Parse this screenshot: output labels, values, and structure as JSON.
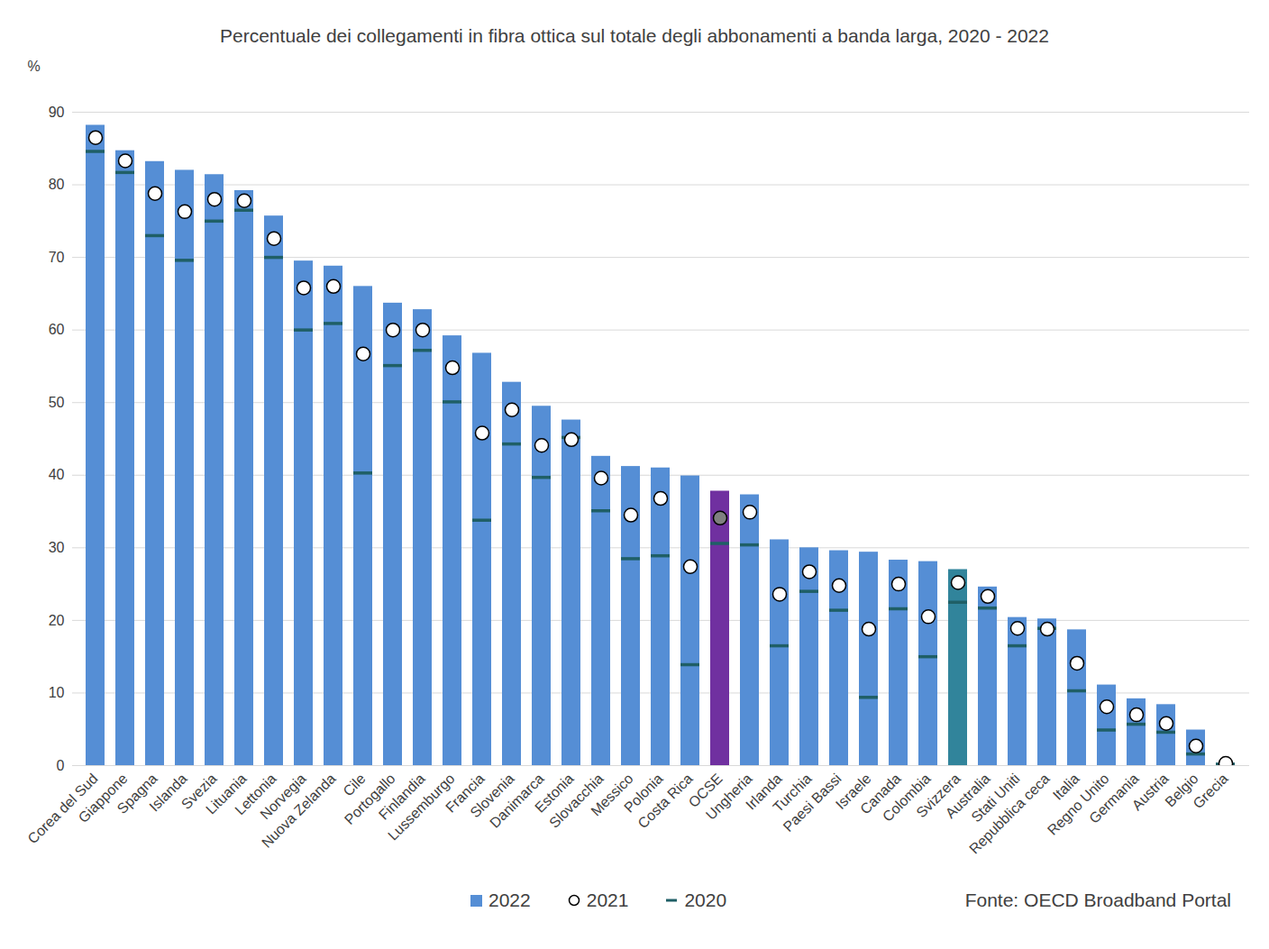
{
  "chart_data": {
    "type": "bar",
    "title": "Percentuale dei collegamenti in fibra ottica sul totale degli abbonamenti a banda larga, 2020 - 2022",
    "y_label": "%",
    "source": "Fonte: OECD Broadband Portal",
    "categories": [
      "Corea del Sud",
      "Giappone",
      "Spagna",
      "Islanda",
      "Svezia",
      "Lituania",
      "Lettonia",
      "Norvegia",
      "Nuova Zelanda",
      "Cile",
      "Portogallo",
      "Finlandia",
      "Lussemburgo",
      "Francia",
      "Slovenia",
      "Danimarca",
      "Estonia",
      "Slovacchia",
      "Messico",
      "Polonia",
      "Costa Rica",
      "OCSE",
      "Ungheria",
      "Irlanda",
      "Turchia",
      "Paesi Bassi",
      "Israele",
      "Canada",
      "Colombia",
      "Svizzera",
      "Australia",
      "Stati Uniti",
      "Repubblica ceca",
      "Italia",
      "Regno Unito",
      "Germania",
      "Austria",
      "Belgio",
      "Grecia"
    ],
    "series": [
      {
        "name": "2022",
        "type": "bar",
        "color": "#558ED5",
        "colors": [
          "#558ED5",
          "#558ED5",
          "#558ED5",
          "#558ED5",
          "#558ED5",
          "#558ED5",
          "#558ED5",
          "#558ED5",
          "#558ED5",
          "#558ED5",
          "#558ED5",
          "#558ED5",
          "#558ED5",
          "#558ED5",
          "#558ED5",
          "#558ED5",
          "#558ED5",
          "#558ED5",
          "#558ED5",
          "#558ED5",
          "#558ED5",
          "#7030A0",
          "#558ED5",
          "#558ED5",
          "#558ED5",
          "#558ED5",
          "#558ED5",
          "#558ED5",
          "#558ED5",
          "#31849B",
          "#558ED5",
          "#558ED5",
          "#558ED5",
          "#558ED5",
          "#558ED5",
          "#558ED5",
          "#558ED5",
          "#558ED5",
          "#558ED5"
        ],
        "values": [
          88.2,
          84.7,
          83.2,
          82,
          81.4,
          79.2,
          75.7,
          69.5,
          68.8,
          66,
          63.7,
          62.8,
          59.2,
          56.8,
          52.8,
          49.5,
          47.6,
          42.6,
          41.2,
          41,
          39.9,
          37.8,
          37.3,
          31.1,
          30,
          29.6,
          29.4,
          28.3,
          28.1,
          27,
          24.6,
          20.4,
          20.2,
          18.7,
          11.1,
          9.2,
          8.4,
          4.9,
          0.3
        ]
      },
      {
        "name": "2021",
        "type": "scatter",
        "marker": "circle",
        "color": "#ffffff",
        "colors": [
          "#ffffff",
          "#ffffff",
          "#ffffff",
          "#ffffff",
          "#ffffff",
          "#ffffff",
          "#ffffff",
          "#ffffff",
          "#ffffff",
          "#ffffff",
          "#ffffff",
          "#ffffff",
          "#ffffff",
          "#ffffff",
          "#ffffff",
          "#ffffff",
          "#ffffff",
          "#ffffff",
          "#ffffff",
          "#ffffff",
          "#ffffff",
          "#808080",
          "#ffffff",
          "#ffffff",
          "#ffffff",
          "#ffffff",
          "#ffffff",
          "#ffffff",
          "#ffffff",
          "#ffffff",
          "#ffffff",
          "#ffffff",
          "#ffffff",
          "#ffffff",
          "#ffffff",
          "#ffffff",
          "#ffffff",
          "#ffffff",
          "#ffffff"
        ],
        "values": [
          86.5,
          83.3,
          78.8,
          76.3,
          78,
          77.8,
          72.6,
          65.8,
          66,
          56.7,
          60,
          60,
          54.8,
          45.8,
          49,
          44.1,
          44.9,
          39.6,
          34.5,
          36.8,
          27.4,
          34.1,
          34.9,
          23.6,
          26.7,
          24.8,
          18.8,
          25,
          20.5,
          25.2,
          23.3,
          18.9,
          18.8,
          14.1,
          8.1,
          7,
          5.8,
          2.7,
          0.3
        ]
      },
      {
        "name": "2020",
        "type": "scatter",
        "marker": "dash",
        "color": "#1F5F66",
        "values": [
          84.6,
          81.7,
          73,
          69.6,
          75,
          76.5,
          70,
          60,
          60.9,
          40.3,
          55.1,
          57.2,
          50.1,
          33.8,
          44.3,
          39.7,
          45.2,
          35.1,
          28.5,
          28.9,
          13.9,
          30.6,
          30.4,
          16.5,
          24,
          21.4,
          9.4,
          21.6,
          15,
          22.5,
          21.7,
          16.5,
          18.9,
          10.3,
          4.9,
          5.7,
          4.6,
          1.6,
          0.2
        ]
      }
    ],
    "ylim": [
      0,
      90
    ],
    "yticks": [
      0,
      10,
      20,
      30,
      40,
      50,
      60,
      70,
      80,
      90
    ],
    "grid": true,
    "legend": "bottom"
  }
}
